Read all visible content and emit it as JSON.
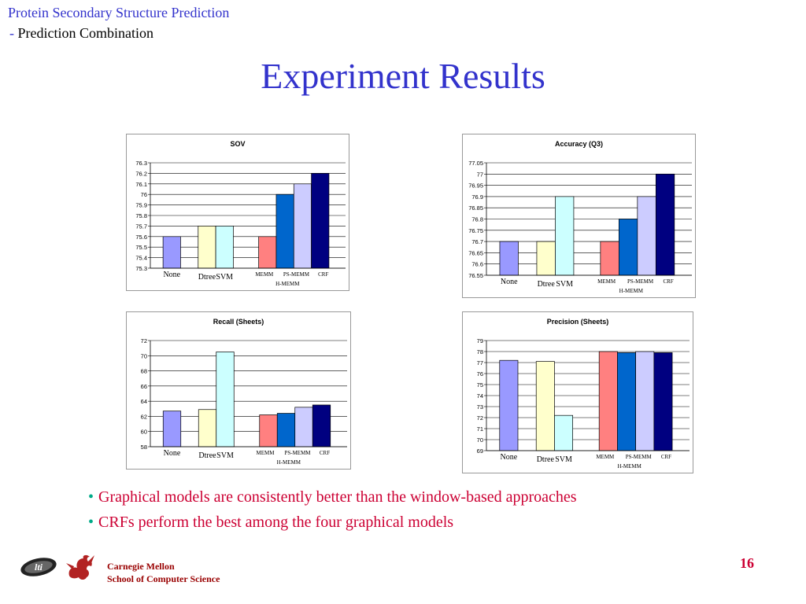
{
  "header": {
    "line1": "Protein Secondary Structure Prediction",
    "dash": "-",
    "line2": " Prediction Combination"
  },
  "title": "Experiment Results",
  "categories": [
    "None",
    "Dtree",
    "SVM",
    "MEMM",
    "PS-MEMM",
    "CRF",
    "H-MEMM"
  ],
  "colors": [
    "#9999ff",
    "#ffffcc",
    "#ccffff",
    "#ff8080",
    "#0066cc",
    "#ccccff",
    "#000080"
  ],
  "chart_data": [
    {
      "type": "bar",
      "title": "SOV",
      "ylim": [
        75.3,
        76.3
      ],
      "yticks": [
        "76.3",
        "76.2",
        "76.1",
        "76",
        "75.9",
        "75.8",
        "75.7",
        "75.6",
        "75.5",
        "75.4",
        "75.3"
      ],
      "values": [
        75.6,
        75.7,
        75.7,
        75.6,
        76.0,
        76.1,
        76.2
      ],
      "grid": true
    },
    {
      "type": "bar",
      "title": "Accuracy (Q3)",
      "ylim": [
        76.55,
        77.05
      ],
      "yticks": [
        "77.05",
        "77",
        "76.95",
        "76.9",
        "76.85",
        "76.8",
        "76.75",
        "76.7",
        "76.65",
        "76.6",
        "76.55"
      ],
      "values": [
        76.7,
        76.7,
        76.9,
        76.7,
        76.8,
        76.9,
        77.0
      ],
      "grid": true
    },
    {
      "type": "bar",
      "title": "Recall (Sheets)",
      "ylim": [
        58,
        72
      ],
      "yticks": [
        "72",
        "70",
        "68",
        "66",
        "64",
        "62",
        "60",
        "58"
      ],
      "values": [
        62.7,
        62.9,
        70.5,
        62.2,
        62.4,
        63.2,
        63.5
      ],
      "grid": true
    },
    {
      "type": "bar",
      "title": "Precision (Sheets)",
      "ylim": [
        69,
        79
      ],
      "yticks": [
        "79",
        "78",
        "77",
        "76",
        "75",
        "74",
        "73",
        "72",
        "71",
        "70",
        "69"
      ],
      "values": [
        77.2,
        77.1,
        72.2,
        78.0,
        77.9,
        78.0,
        77.9
      ],
      "grid": true
    }
  ],
  "bullets": [
    "Graphical models are consistently better than the window-based approaches",
    "CRFs perform the best among the four graphical models"
  ],
  "footer": {
    "org1": "Carnegie Mellon",
    "org2": "School of Computer Science",
    "page": "16",
    "logo_text": "lti"
  }
}
